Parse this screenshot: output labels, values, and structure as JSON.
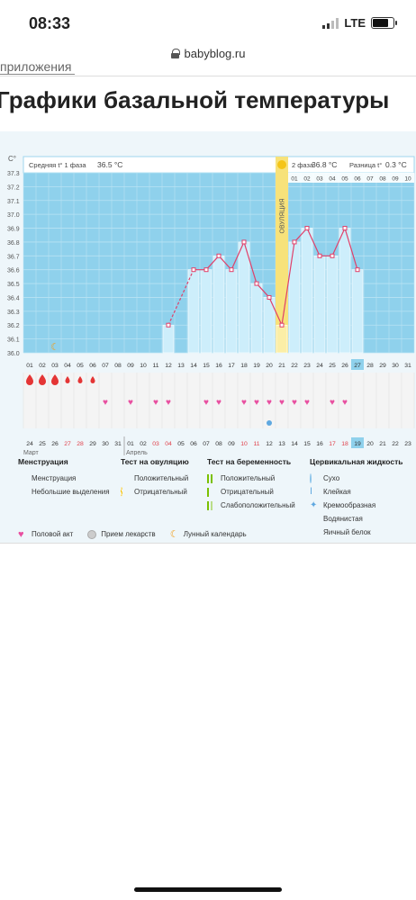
{
  "status": {
    "time": "08:33",
    "network": "LTE"
  },
  "browser": {
    "url": "babyblog.ru"
  },
  "page": {
    "breadcrumb": "приложения",
    "title": "Графики базальной температуры"
  },
  "chart_data": {
    "type": "line",
    "y_unit": "C°",
    "ylim": [
      36.0,
      37.3
    ],
    "y_ticks": [
      "37.3",
      "37.2",
      "37.1",
      "37.0",
      "36.9",
      "36.8",
      "36.7",
      "36.6",
      "36.5",
      "36.4",
      "36.3",
      "36.2",
      "36.1",
      "36.0"
    ],
    "cycle_days": [
      "01",
      "02",
      "03",
      "04",
      "05",
      "06",
      "07",
      "08",
      "09",
      "10",
      "11",
      "12",
      "13",
      "14",
      "15",
      "16",
      "17",
      "18",
      "19",
      "20",
      "21",
      "22",
      "23",
      "24",
      "25",
      "26",
      "27",
      "28",
      "29",
      "30",
      "31"
    ],
    "phase2_days": [
      "01",
      "02",
      "03",
      "04",
      "05",
      "06",
      "07",
      "08",
      "09",
      "10"
    ],
    "dates": [
      "24",
      "25",
      "26",
      "27",
      "28",
      "29",
      "30",
      "31",
      "01",
      "02",
      "03",
      "04",
      "05",
      "06",
      "07",
      "08",
      "09",
      "10",
      "11",
      "12",
      "13",
      "14",
      "15",
      "16",
      "17",
      "18",
      "19",
      "20",
      "21",
      "22",
      "23"
    ],
    "red_dates_idx": [
      3,
      4,
      10,
      11,
      17,
      18,
      24,
      25
    ],
    "current_idx": 26,
    "months": [
      "Март",
      "Апрель"
    ],
    "temperatures": [
      null,
      null,
      null,
      null,
      null,
      null,
      null,
      null,
      null,
      null,
      null,
      36.2,
      null,
      36.6,
      36.6,
      36.7,
      36.6,
      36.8,
      36.5,
      36.4,
      36.2,
      36.8,
      36.9,
      36.7,
      36.7,
      36.9,
      36.6,
      null,
      null,
      null,
      null
    ],
    "dashed_segment": [
      12,
      14
    ],
    "ovulation_day": 21,
    "ovulation_label": "ОВУЛЯЦИЯ",
    "phase1_label": "Средняя t° 1 фаза",
    "phase1_value": "36.5 °C",
    "phase2_label": "2 фаза",
    "phase2_value": "36.8 °C",
    "diff_label": "Разница t°",
    "diff_value": "0.3 °C",
    "menstruation_days": [
      1,
      2,
      3
    ],
    "spotting_days": [
      4,
      5,
      6
    ],
    "intercourse_days": [
      7,
      9,
      11,
      12,
      15,
      16,
      18,
      19,
      20,
      21,
      22,
      23,
      25,
      26
    ],
    "cervical_egg_white_day": 20,
    "moon_day": 3,
    "colors": {
      "bg": "#8fd1ec",
      "bar": "#cdeefb",
      "line": "#e0406a",
      "ovulation": "#f7e27a",
      "accent": "#f5c518"
    }
  },
  "legend": {
    "menstruation": {
      "title": "Менструация",
      "items": [
        "Менструация",
        "Небольшие выделения"
      ]
    },
    "ovulation_test": {
      "title": "Тест на овуляцию",
      "items": [
        "Положительный",
        "Отрицательный"
      ]
    },
    "pregnancy_test": {
      "title": "Тест на беременность",
      "items": [
        "Положительный",
        "Отрицательный",
        "Слабоположительный"
      ]
    },
    "cervical": {
      "title": "Цервикальная жидкость",
      "items": [
        "Сухо",
        "Клейкая",
        "Кремообразная",
        "Водянистая",
        "Яичный белок"
      ]
    },
    "bottom": [
      "Половой акт",
      "Прием лекарств",
      "Лунный календарь"
    ]
  }
}
